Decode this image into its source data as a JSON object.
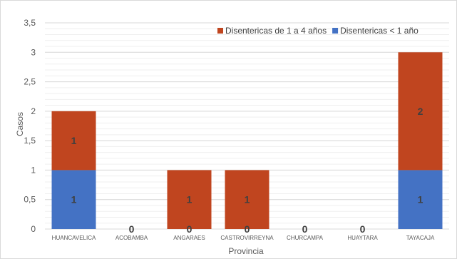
{
  "chart_data": {
    "type": "bar",
    "stacked": true,
    "categories": [
      "HUANCAVELICA",
      "ACOBAMBA",
      "ANGARAES",
      "CASTROVIRREYNA",
      "CHURCAMPA",
      "HUAYTARA",
      "TAYACAJA"
    ],
    "series": [
      {
        "name": "Disentericas < 1 año",
        "values": [
          1,
          0,
          0,
          0,
          0,
          0,
          1
        ],
        "color": "#4472c4"
      },
      {
        "name": "Disentericas de 1 a 4 años",
        "values": [
          1,
          0,
          1,
          1,
          0,
          0,
          2
        ],
        "color": "#c0451f"
      }
    ],
    "legend_order": [
      1,
      0
    ],
    "xlabel": "Provincia",
    "ylabel": "Casos",
    "ylim": [
      0,
      3.5
    ],
    "yticks": [
      0,
      0.5,
      1,
      1.5,
      2,
      2.5,
      3,
      3.5
    ],
    "ytick_labels": [
      "0",
      "0,5",
      "1",
      "1,5",
      "2",
      "2,5",
      "3",
      "3,5"
    ],
    "grid": true,
    "legend_position": "top-right",
    "zero_labels": [
      "",
      "0",
      "0",
      "0",
      "0",
      "0",
      ""
    ]
  }
}
